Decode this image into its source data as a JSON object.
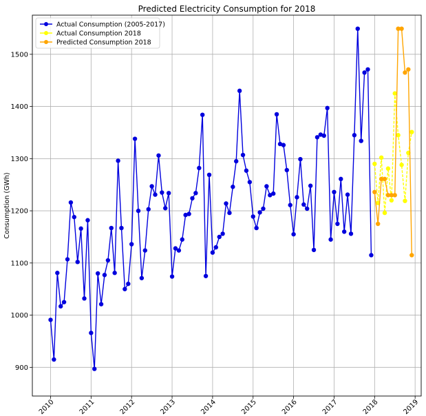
{
  "chart_data": {
    "type": "line",
    "title": "Predicted Electricity Consumption for 2018",
    "xlabel": "",
    "ylabel": "Consumption (GWh)",
    "xlim": [
      2009.55,
      2019.15
    ],
    "ylim": [
      845,
      1575
    ],
    "x_ticks": [
      2010,
      2011,
      2012,
      2013,
      2014,
      2015,
      2016,
      2017,
      2018,
      2019
    ],
    "x_tick_labels": [
      "2010",
      "2011",
      "2012",
      "2013",
      "2014",
      "2015",
      "2016",
      "2017",
      "2018",
      "2019"
    ],
    "y_ticks": [
      900,
      1000,
      1100,
      1200,
      1300,
      1400,
      1500
    ],
    "y_tick_labels": [
      "900",
      "1000",
      "1100",
      "1200",
      "1300",
      "1400",
      "1500"
    ],
    "grid": true,
    "legend_position": "top-left",
    "series": [
      {
        "name": "Actual Consumption (2005-2017)",
        "color": "#0000dd",
        "x": [
          2010.0,
          2010.083,
          2010.167,
          2010.25,
          2010.333,
          2010.417,
          2010.5,
          2010.583,
          2010.667,
          2010.75,
          2010.833,
          2010.917,
          2011.0,
          2011.083,
          2011.167,
          2011.25,
          2011.333,
          2011.417,
          2011.5,
          2011.583,
          2011.667,
          2011.75,
          2011.833,
          2011.917,
          2012.0,
          2012.083,
          2012.167,
          2012.25,
          2012.333,
          2012.417,
          2012.5,
          2012.583,
          2012.667,
          2012.75,
          2012.833,
          2012.917,
          2013.0,
          2013.083,
          2013.167,
          2013.25,
          2013.333,
          2013.417,
          2013.5,
          2013.583,
          2013.667,
          2013.75,
          2013.833,
          2013.917,
          2014.0,
          2014.083,
          2014.167,
          2014.25,
          2014.333,
          2014.417,
          2014.5,
          2014.583,
          2014.667,
          2014.75,
          2014.833,
          2014.917,
          2015.0,
          2015.083,
          2015.167,
          2015.25,
          2015.333,
          2015.417,
          2015.5,
          2015.583,
          2015.667,
          2015.75,
          2015.833,
          2015.917,
          2016.0,
          2016.083,
          2016.167,
          2016.25,
          2016.333,
          2016.417,
          2016.5,
          2016.583,
          2016.667,
          2016.75,
          2016.833,
          2016.917,
          2017.0,
          2017.083,
          2017.167,
          2017.25,
          2017.333,
          2017.417,
          2017.5,
          2017.583,
          2017.667,
          2017.75,
          2017.833,
          2017.917
        ],
        "y": [
          991,
          915,
          1081,
          1017,
          1025,
          1107,
          1216,
          1188,
          1102,
          1166,
          1032,
          1182,
          966,
          897,
          1080,
          1021,
          1077,
          1105,
          1167,
          1081,
          1296,
          1167,
          1050,
          1060,
          1136,
          1338,
          1200,
          1071,
          1124,
          1203,
          1247,
          1231,
          1306,
          1235,
          1205,
          1234,
          1074,
          1128,
          1124,
          1145,
          1192,
          1194,
          1224,
          1234,
          1282,
          1384,
          1075,
          1269,
          1120,
          1130,
          1150,
          1156,
          1214,
          1196,
          1246,
          1295,
          1430,
          1307,
          1277,
          1255,
          1189,
          1167,
          1197,
          1204,
          1247,
          1230,
          1233,
          1385,
          1328,
          1326,
          1278,
          1211,
          1155,
          1226,
          1299,
          1212,
          1204,
          1248,
          1125,
          1341,
          1346,
          1344,
          1397,
          1145,
          1236,
          1175,
          1261,
          1160,
          1231,
          1156,
          1345,
          1549,
          1334,
          1465,
          1471,
          1115
        ]
      },
      {
        "name": "Actual Consumption 2018",
        "color": "#ffff00",
        "x": [
          2018.0,
          2018.083,
          2018.167,
          2018.25,
          2018.333,
          2018.417,
          2018.5,
          2018.583,
          2018.667,
          2018.75,
          2018.833,
          2018.917
        ],
        "y": [
          1290,
          1215,
          1302,
          1196,
          1281,
          1220,
          1425,
          1345,
          1288,
          1219,
          1311,
          1351
        ]
      },
      {
        "name": "Predicted Consumption 2018",
        "color": "#ffa500",
        "x": [
          2018.0,
          2018.083,
          2018.167,
          2018.25,
          2018.333,
          2018.417,
          2018.5,
          2018.583,
          2018.667,
          2018.75,
          2018.833,
          2018.917
        ],
        "y": [
          1236,
          1175,
          1261,
          1261,
          1230,
          1230,
          1230,
          1549,
          1549,
          1465,
          1471,
          1115
        ]
      }
    ]
  }
}
